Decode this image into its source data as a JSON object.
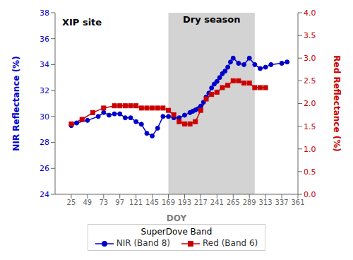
{
  "chart_data": {
    "type": "line",
    "title": "XIP site",
    "xlabel": "DOY",
    "ylabel": "NIR Reflectance (%)",
    "y2label": "Red Reflectance (%)",
    "xlim": [
      1,
      361
    ],
    "xticks": [
      25,
      49,
      73,
      97,
      121,
      145,
      169,
      193,
      217,
      241,
      265,
      289,
      313,
      337,
      361
    ],
    "ylim": [
      24,
      38
    ],
    "yticks": [
      24,
      26,
      28,
      30,
      32,
      34,
      36,
      38
    ],
    "y2lim": [
      0.0,
      4.0
    ],
    "y2ticks": [
      {
        "value": 0.0,
        "label": "0.0"
      },
      0.5,
      {
        "value": 1.0,
        "label": "1.0"
      },
      1.5,
      {
        "value": 2.0,
        "label": "2.0"
      },
      2.5,
      {
        "value": 3.0,
        "label": "3.0"
      },
      3.5,
      {
        "value": 4.0,
        "label": "4.0"
      }
    ],
    "grid": false,
    "legend": "bottom",
    "legend_title": "SuperDove Band",
    "spans": [
      {
        "start": 169,
        "end": 297,
        "label": "Dry season",
        "color": "#d3d3d3"
      }
    ],
    "series": [
      {
        "name": "NIR (Band 8)",
        "color": "#0000cc",
        "marker": "circle",
        "x": [
          25,
          33,
          49,
          65,
          73,
          81,
          89,
          97,
          105,
          113,
          121,
          129,
          137,
          145,
          153,
          161,
          169,
          177,
          185,
          193,
          201,
          205,
          209,
          213,
          217,
          221,
          225,
          229,
          233,
          237,
          241,
          245,
          249,
          253,
          257,
          261,
          265,
          273,
          281,
          289,
          297,
          305,
          313,
          321,
          337,
          345
        ],
        "values": [
          29.3,
          29.5,
          29.7,
          30.0,
          30.3,
          30.1,
          30.2,
          30.2,
          29.9,
          29.9,
          29.6,
          29.4,
          28.7,
          28.5,
          29.1,
          30.0,
          30.0,
          29.9,
          29.9,
          30.1,
          30.3,
          30.4,
          30.5,
          30.6,
          30.8,
          31.1,
          31.5,
          31.8,
          32.2,
          32.5,
          32.7,
          33.0,
          33.3,
          33.5,
          33.8,
          34.2,
          34.5,
          34.1,
          34.0,
          34.5,
          34.0,
          33.7,
          33.8,
          34.0,
          34.1,
          34.2
        ]
      },
      {
        "name": "Red (Band 6)",
        "color": "#cc0000",
        "marker": "square",
        "axis": "y2",
        "x": [
          25,
          41,
          57,
          73,
          89,
          97,
          105,
          113,
          121,
          129,
          137,
          145,
          153,
          161,
          169,
          177,
          185,
          193,
          201,
          209,
          217,
          225,
          233,
          241,
          249,
          257,
          265,
          273,
          281,
          289,
          297,
          305,
          313
        ],
        "values": [
          1.55,
          1.65,
          1.8,
          1.9,
          1.95,
          1.95,
          1.95,
          1.95,
          1.95,
          1.9,
          1.9,
          1.9,
          1.9,
          1.9,
          1.85,
          1.75,
          1.6,
          1.55,
          1.55,
          1.6,
          1.85,
          2.1,
          2.2,
          2.25,
          2.35,
          2.4,
          2.5,
          2.5,
          2.45,
          2.45,
          2.35,
          2.35,
          2.35
        ]
      }
    ]
  }
}
